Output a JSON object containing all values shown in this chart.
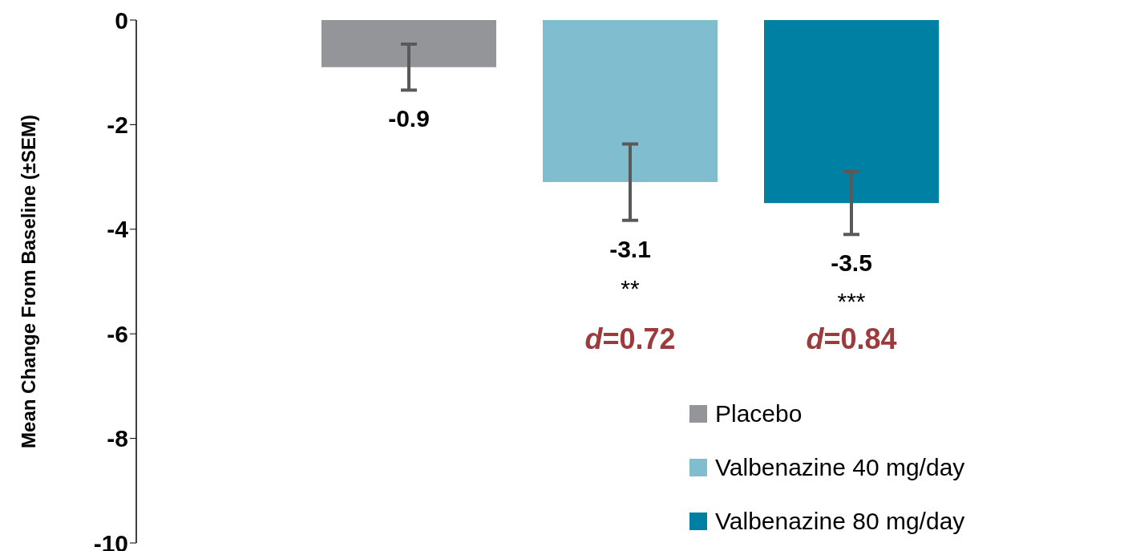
{
  "chart_data": {
    "type": "bar",
    "ylabel": "Mean Change From Baseline (±SEM)",
    "categories": [
      null
    ],
    "series": [
      {
        "name": "Placebo",
        "color": "#939598",
        "values": [
          -0.9
        ],
        "errors": [
          0.44
        ]
      },
      {
        "name": "Valbenazine 40 mg/day",
        "color": "#80bdcf",
        "values": [
          -3.1
        ],
        "errors": [
          0.73
        ]
      },
      {
        "name": "Valbenazine 80 mg/day",
        "color": "#0080a3",
        "values": [
          -3.5
        ],
        "errors": [
          0.6
        ]
      }
    ],
    "ylim": [
      -10,
      0
    ],
    "yticks": [
      0,
      -2,
      -4,
      -6,
      -8,
      -10
    ],
    "grid": false,
    "legend": "bottom right",
    "tick_labels": "y",
    "data_labels": true,
    "annotations": [
      "**",
      "***",
      "d=0.72",
      "d=0.84"
    ]
  }
}
